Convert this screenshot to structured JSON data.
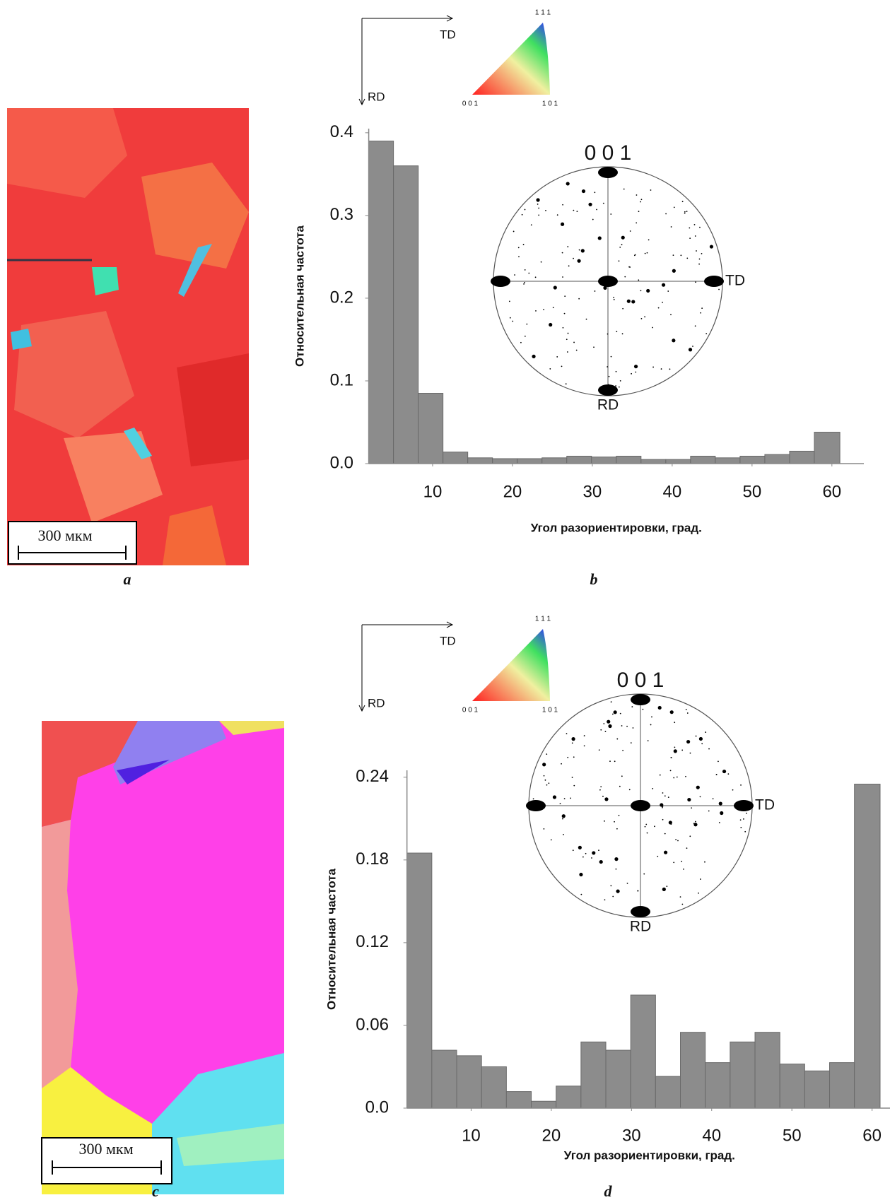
{
  "maps": [
    {
      "label": "a",
      "scale_bar": "300 мкм"
    },
    {
      "label": "c",
      "scale_bar": "300 мкм"
    }
  ],
  "chart_data": [
    {
      "type": "histogram",
      "panel_label": "b",
      "y_label": "Относительная частота",
      "x_label": "Угол разориентировки, град.",
      "bins": [
        2,
        5.1,
        8.2,
        11.3,
        14.4,
        17.5,
        20.6,
        23.7,
        26.8,
        29.9,
        33,
        36.1,
        39.2,
        42.3,
        45.4,
        48.5,
        51.6,
        54.7,
        57.8,
        61
      ],
      "values": [
        0.39,
        0.36,
        0.085,
        0.014,
        0.007,
        0.006,
        0.006,
        0.007,
        0.009,
        0.008,
        0.009,
        0.005,
        0.005,
        0.009,
        0.007,
        0.009,
        0.011,
        0.015,
        0.038
      ],
      "color": "#8c8c8c",
      "xlim": [
        0,
        64
      ],
      "ylim": [
        0,
        0.405
      ],
      "xticks": [
        10,
        20,
        30,
        40,
        50,
        60
      ],
      "yticks": [
        {
          "value": 0,
          "label": "0.0"
        },
        0.1,
        0.2,
        0.3,
        0.4
      ],
      "legend_triangle": {
        "top": "1 1 1",
        "left": "0 0 1",
        "right": "1 0 1"
      },
      "axes_legend": {
        "horizontal": "TD",
        "vertical": "RD"
      },
      "pole_figure": {
        "title": "0 0 1",
        "right": "TD",
        "bottom": "RD"
      }
    },
    {
      "type": "histogram",
      "panel_label": "d",
      "y_label": "Относительная частота",
      "x_label": "Угол разориентировки, град.",
      "bins": [
        2,
        5.1,
        8.2,
        11.3,
        14.4,
        17.5,
        20.6,
        23.7,
        26.8,
        29.9,
        33,
        36.1,
        39.2,
        42.3,
        45.4,
        48.5,
        51.6,
        54.7,
        57.8,
        61
      ],
      "values": [
        0.185,
        0.042,
        0.038,
        0.03,
        0.012,
        0.005,
        0.016,
        0.048,
        0.042,
        0.082,
        0.023,
        0.055,
        0.033,
        0.048,
        0.055,
        0.032,
        0.027,
        0.033,
        0.235
      ],
      "color": "#8c8c8c",
      "xlim": [
        0,
        62.5
      ],
      "ylim": [
        0,
        0.245
      ],
      "xticks": [
        10,
        20,
        30,
        40,
        50,
        60
      ],
      "yticks": [
        {
          "value": 0,
          "label": "0.0"
        },
        0.06,
        0.12,
        0.18,
        0.24
      ],
      "legend_triangle": {
        "top": "1 1 1",
        "left": "0 0 1",
        "right": "1 0 1"
      },
      "axes_legend": {
        "horizontal": "TD",
        "vertical": "RD"
      },
      "pole_figure": {
        "title": "0 0 1",
        "right": "TD",
        "bottom": "RD"
      }
    }
  ]
}
